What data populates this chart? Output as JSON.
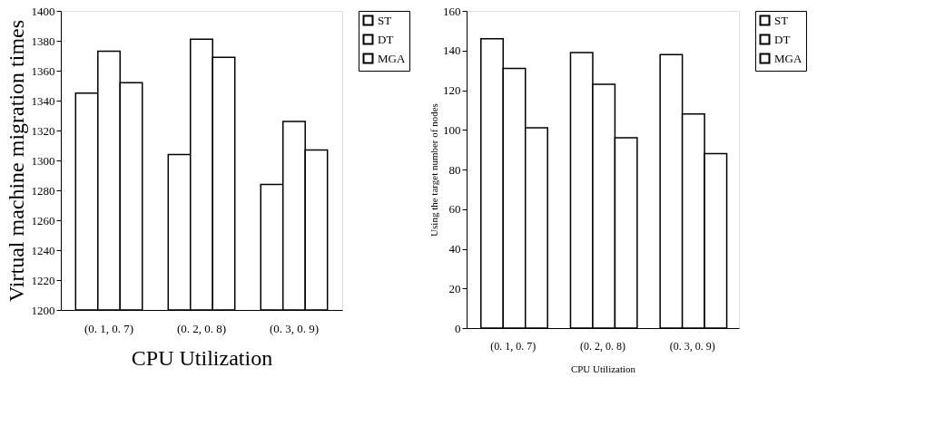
{
  "chart_data": [
    {
      "type": "bar",
      "xlabel": "CPU Utilization",
      "ylabel": "Virtual machine migration times",
      "categories": [
        "(0. 1, 0. 7)",
        "(0. 2, 0. 8)",
        "(0. 3, 0. 9)"
      ],
      "series": [
        {
          "name": "ST",
          "color": "#ffffff",
          "values": [
            1345,
            1304,
            1284
          ]
        },
        {
          "name": "DT",
          "color": "#ffffff",
          "values": [
            1373,
            1381,
            1326
          ]
        },
        {
          "name": "MGA",
          "color": "#ffffff",
          "values": [
            1352,
            1369,
            1307
          ]
        }
      ],
      "ylim": [
        1200,
        1400
      ],
      "yticks": [
        1200,
        1220,
        1240,
        1260,
        1280,
        1300,
        1320,
        1340,
        1360,
        1380,
        1400
      ],
      "grid": false,
      "legend": "top right"
    },
    {
      "type": "bar",
      "xlabel": "CPU Utilization",
      "ylabel": "Using the target number of nodes",
      "categories": [
        "(0. 1, 0. 7)",
        "(0. 2, 0. 8)",
        "(0. 3, 0. 9)"
      ],
      "series": [
        {
          "name": "ST",
          "color": "#ffffff",
          "values": [
            146,
            139,
            138
          ]
        },
        {
          "name": "DT",
          "color": "#ffffff",
          "values": [
            131,
            123,
            108
          ]
        },
        {
          "name": "MGA",
          "color": "#ffffff",
          "values": [
            101,
            96,
            88
          ]
        }
      ],
      "ylim": [
        0,
        160
      ],
      "yticks": [
        0,
        20,
        40,
        60,
        80,
        100,
        120,
        140,
        160
      ],
      "grid": false,
      "legend": "top right"
    }
  ]
}
